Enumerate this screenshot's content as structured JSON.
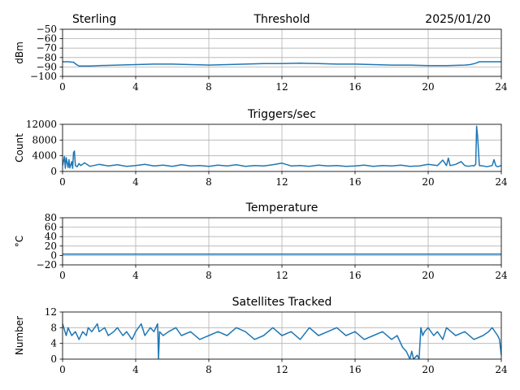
{
  "header": {
    "site": "Sterling",
    "date": "2025/01/20"
  },
  "colors": {
    "series": "#1f77b4",
    "grid": "#b0b0b0"
  },
  "chart_data": [
    {
      "type": "line",
      "title": "Threshold",
      "ylabel": "dBm",
      "xlabel": "",
      "xlim": [
        0,
        24
      ],
      "ylim": [
        -100,
        -50
      ],
      "xticks": [
        0,
        4,
        8,
        12,
        16,
        20,
        24
      ],
      "yticks": [
        -100,
        -90,
        -80,
        -70,
        -60,
        -50
      ],
      "yticklabels": [
        "−100",
        "−90",
        "−80",
        "−70",
        "−60",
        "−50"
      ],
      "grid": true,
      "x": [
        0,
        0.3,
        0.6,
        0.8,
        0.9,
        1.5,
        2,
        3,
        4,
        5,
        6,
        7,
        8,
        9,
        10,
        11,
        12,
        13,
        14,
        15,
        16,
        17,
        18,
        19,
        20,
        21,
        22,
        22.3,
        22.6,
        22.8,
        23,
        23.5,
        24
      ],
      "values": [
        -84.5,
        -84.5,
        -85,
        -88,
        -89,
        -89,
        -88.5,
        -88,
        -87.5,
        -87,
        -87,
        -87.5,
        -88,
        -87.5,
        -87,
        -86.5,
        -86.5,
        -86,
        -86.5,
        -87,
        -87,
        -87.5,
        -88,
        -88,
        -88.5,
        -88.5,
        -88,
        -87.5,
        -86,
        -84.5,
        -84.5,
        -84.5,
        -84.5
      ]
    },
    {
      "type": "line",
      "title": "Triggers/sec",
      "ylabel": "Count",
      "xlabel": "",
      "xlim": [
        0,
        24
      ],
      "ylim": [
        0,
        12000
      ],
      "xticks": [
        0,
        4,
        8,
        12,
        16,
        20,
        24
      ],
      "yticks": [
        0,
        4000,
        8000,
        12000
      ],
      "yticklabels": [
        "0",
        "4000",
        "8000",
        "12000"
      ],
      "grid": true,
      "x": [
        0,
        0.1,
        0.15,
        0.2,
        0.3,
        0.35,
        0.4,
        0.5,
        0.55,
        0.6,
        0.65,
        0.7,
        0.8,
        0.9,
        1,
        1.2,
        1.5,
        2,
        2.5,
        3,
        3.5,
        4,
        4.5,
        5,
        5.5,
        6,
        6.5,
        7,
        7.5,
        8,
        8.5,
        9,
        9.5,
        10,
        10.5,
        11,
        11.5,
        12,
        12.5,
        13,
        13.5,
        14,
        14.5,
        15,
        15.5,
        16,
        16.5,
        17,
        17.5,
        18,
        18.5,
        19,
        19.5,
        20,
        20.5,
        20.8,
        21,
        21.1,
        21.2,
        21.5,
        21.8,
        22,
        22.2,
        22.4,
        22.5,
        22.6,
        22.65,
        22.7,
        22.8,
        23,
        23.2,
        23.5,
        23.6,
        23.7,
        23.8,
        24
      ],
      "values": [
        1500,
        3800,
        800,
        3500,
        1000,
        3000,
        900,
        2500,
        800,
        4800,
        5200,
        1500,
        1200,
        2000,
        1500,
        2200,
        1300,
        1800,
        1400,
        1700,
        1300,
        1500,
        1800,
        1400,
        1600,
        1300,
        1700,
        1400,
        1500,
        1300,
        1600,
        1400,
        1700,
        1300,
        1500,
        1400,
        1700,
        2100,
        1400,
        1500,
        1300,
        1600,
        1400,
        1500,
        1300,
        1400,
        1600,
        1300,
        1500,
        1400,
        1600,
        1300,
        1400,
        1800,
        1500,
        2900,
        1500,
        3400,
        1500,
        1800,
        2500,
        1500,
        1300,
        1500,
        1400,
        1800,
        11500,
        9000,
        1500,
        1400,
        1200,
        1500,
        3000,
        1400,
        1200,
        1500
      ]
    },
    {
      "type": "line",
      "title": "Temperature",
      "ylabel": "°C",
      "xlabel": "",
      "xlim": [
        0,
        24
      ],
      "ylim": [
        -20,
        80
      ],
      "xticks": [
        0,
        4,
        8,
        12,
        16,
        20,
        24
      ],
      "yticks": [
        -20,
        0,
        20,
        40,
        60,
        80
      ],
      "yticklabels": [
        "−20",
        "0",
        "20",
        "40",
        "60",
        "80"
      ],
      "grid": true,
      "x": [
        0,
        24
      ],
      "values": [
        3,
        3
      ]
    },
    {
      "type": "line",
      "title": "Satellites Tracked",
      "ylabel": "Number",
      "xlabel": "",
      "xlim": [
        0,
        24
      ],
      "ylim": [
        0,
        12
      ],
      "xticks": [
        0,
        4,
        8,
        12,
        16,
        20,
        24
      ],
      "yticks": [
        0,
        4,
        8,
        12
      ],
      "yticklabels": [
        "0",
        "4",
        "8",
        "12"
      ],
      "grid": true,
      "x": [
        0,
        0.2,
        0.3,
        0.5,
        0.7,
        0.9,
        1.1,
        1.3,
        1.4,
        1.6,
        1.9,
        2.0,
        2.3,
        2.5,
        2.8,
        3.0,
        3.3,
        3.5,
        3.8,
        4.0,
        4.3,
        4.5,
        4.8,
        5.0,
        5.2,
        5.25,
        5.3,
        5.5,
        5.8,
        6.2,
        6.5,
        7.0,
        7.5,
        8.0,
        8.5,
        9.0,
        9.5,
        10.0,
        10.5,
        11.0,
        11.5,
        12.0,
        12.5,
        13.0,
        13.5,
        14.0,
        14.5,
        15.0,
        15.5,
        16.0,
        16.5,
        17.0,
        17.5,
        18.0,
        18.3,
        18.6,
        18.8,
        18.9,
        19.0,
        19.1,
        19.2,
        19.4,
        19.5,
        19.6,
        19.7,
        19.8,
        20.0,
        20.3,
        20.5,
        20.8,
        21.0,
        21.5,
        22.0,
        22.5,
        23.0,
        23.3,
        23.5,
        23.8,
        23.9,
        24
      ],
      "values": [
        9,
        6,
        8,
        6,
        7,
        5,
        7,
        6,
        8,
        7,
        9,
        7,
        8,
        6,
        7,
        8,
        6,
        7,
        5,
        7,
        9,
        6,
        8,
        7,
        9,
        0,
        7,
        6,
        7,
        8,
        6,
        7,
        5,
        6,
        7,
        6,
        8,
        7,
        5,
        6,
        8,
        6,
        7,
        5,
        8,
        6,
        7,
        8,
        6,
        7,
        5,
        6,
        7,
        5,
        6,
        3,
        2,
        1,
        0,
        2,
        0,
        1,
        0,
        8,
        6,
        7,
        8,
        6,
        7,
        5,
        8,
        6,
        7,
        5,
        6,
        7,
        8,
        6,
        5,
        1
      ]
    }
  ]
}
